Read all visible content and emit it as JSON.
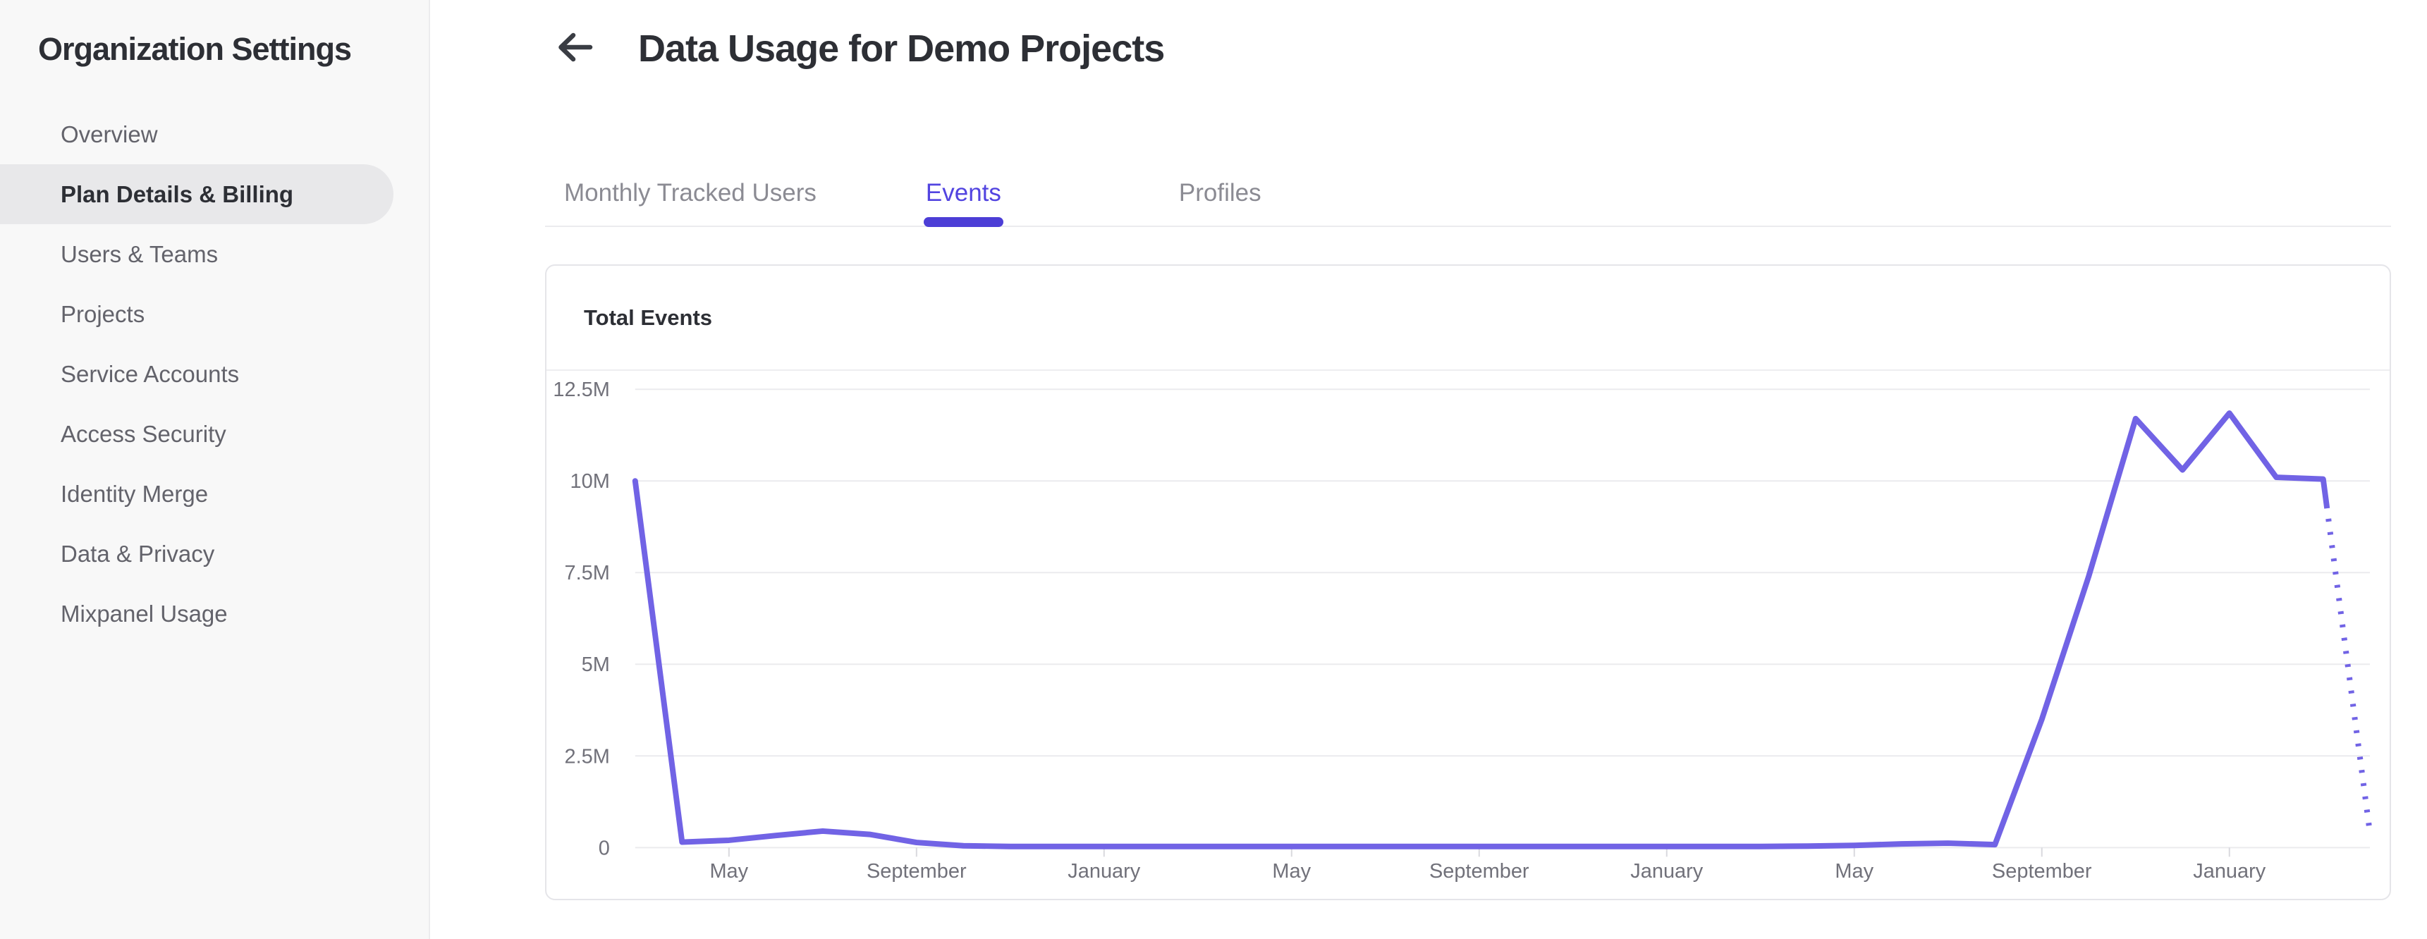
{
  "sidebar": {
    "title": "Organization Settings",
    "items": [
      {
        "label": "Overview",
        "active": false
      },
      {
        "label": "Plan Details & Billing",
        "active": true
      },
      {
        "label": "Users & Teams",
        "active": false
      },
      {
        "label": "Projects",
        "active": false
      },
      {
        "label": "Service Accounts",
        "active": false
      },
      {
        "label": "Access Security",
        "active": false
      },
      {
        "label": "Identity Merge",
        "active": false
      },
      {
        "label": "Data & Privacy",
        "active": false
      },
      {
        "label": "Mixpanel Usage",
        "active": false
      }
    ]
  },
  "header": {
    "title": "Data Usage for Demo Projects"
  },
  "tabs": [
    {
      "label": "Monthly Tracked Users",
      "active": false
    },
    {
      "label": "Events",
      "active": true
    },
    {
      "label": "Profiles",
      "active": false
    }
  ],
  "card": {
    "title": "Total Events"
  },
  "chart_data": {
    "type": "line",
    "title": "Total Events",
    "xlabel": "",
    "ylabel": "",
    "ylim": [
      0,
      12500000
    ],
    "grid": "horizontal",
    "legend": "none",
    "y_tick_labels": [
      "12.5M",
      "10M",
      "7.5M",
      "5M",
      "2.5M",
      "0"
    ],
    "y_tick_values_millions": [
      12.5,
      10,
      7.5,
      5,
      2.5,
      0
    ],
    "x_tick_labels": [
      "May",
      "September",
      "January",
      "May",
      "September",
      "January",
      "May",
      "September",
      "January"
    ],
    "x_tick_point_index": [
      2,
      6,
      10,
      14,
      18,
      22,
      26,
      30,
      34
    ],
    "series": [
      {
        "name": "Total Events",
        "color": "#7163E5",
        "unit": "millions of events per month",
        "values_millions": [
          10.0,
          0.15,
          0.2,
          0.33,
          0.45,
          0.36,
          0.14,
          0.05,
          0.03,
          0.03,
          0.03,
          0.03,
          0.03,
          0.03,
          0.03,
          0.03,
          0.03,
          0.03,
          0.03,
          0.03,
          0.03,
          0.03,
          0.03,
          0.03,
          0.03,
          0.04,
          0.06,
          0.1,
          0.12,
          0.08,
          3.5,
          7.4,
          11.7,
          10.3,
          11.85,
          10.1,
          10.05,
          0.38
        ],
        "last_segment": "dotted-projection"
      }
    ]
  },
  "colors": {
    "text_dark": "#2D2F35",
    "sidebar_item_gray": "#63636B",
    "tab_inactive_gray": "#8B8B93",
    "axis_text": "#71717A",
    "grid_line": "#EBEBEE",
    "tick_mark": "#D9D9DE",
    "card_border": "#E5E5E9",
    "sidebar_bg": "#F8F8F8",
    "sidebar_active_pill": "#E8E8EA",
    "line": "#7163E5",
    "tab_active": "#5244E0",
    "tab_underline": "#4C3ED6",
    "back_arrow": "#3A3D44"
  }
}
